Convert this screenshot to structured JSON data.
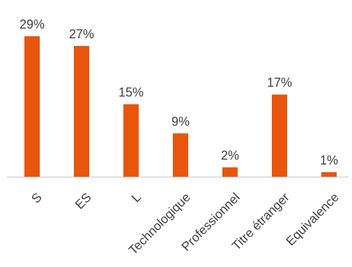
{
  "chart_data": {
    "type": "bar",
    "categories": [
      "S",
      "ES",
      "L",
      "Technologique",
      "Professionnel",
      "Titre étranger",
      "Equivalence"
    ],
    "values": [
      29,
      27,
      15,
      9,
      2,
      17,
      1
    ],
    "value_labels": [
      "29%",
      "27%",
      "15%",
      "9%",
      "2%",
      "17%",
      "1%"
    ],
    "title": "",
    "xlabel": "",
    "ylabel": "",
    "ylim": [
      0,
      30
    ],
    "grid": false,
    "legend": "none",
    "bar_color": "#E8550D",
    "axis_color": "#BFBFBF",
    "text_color": "#404040"
  }
}
